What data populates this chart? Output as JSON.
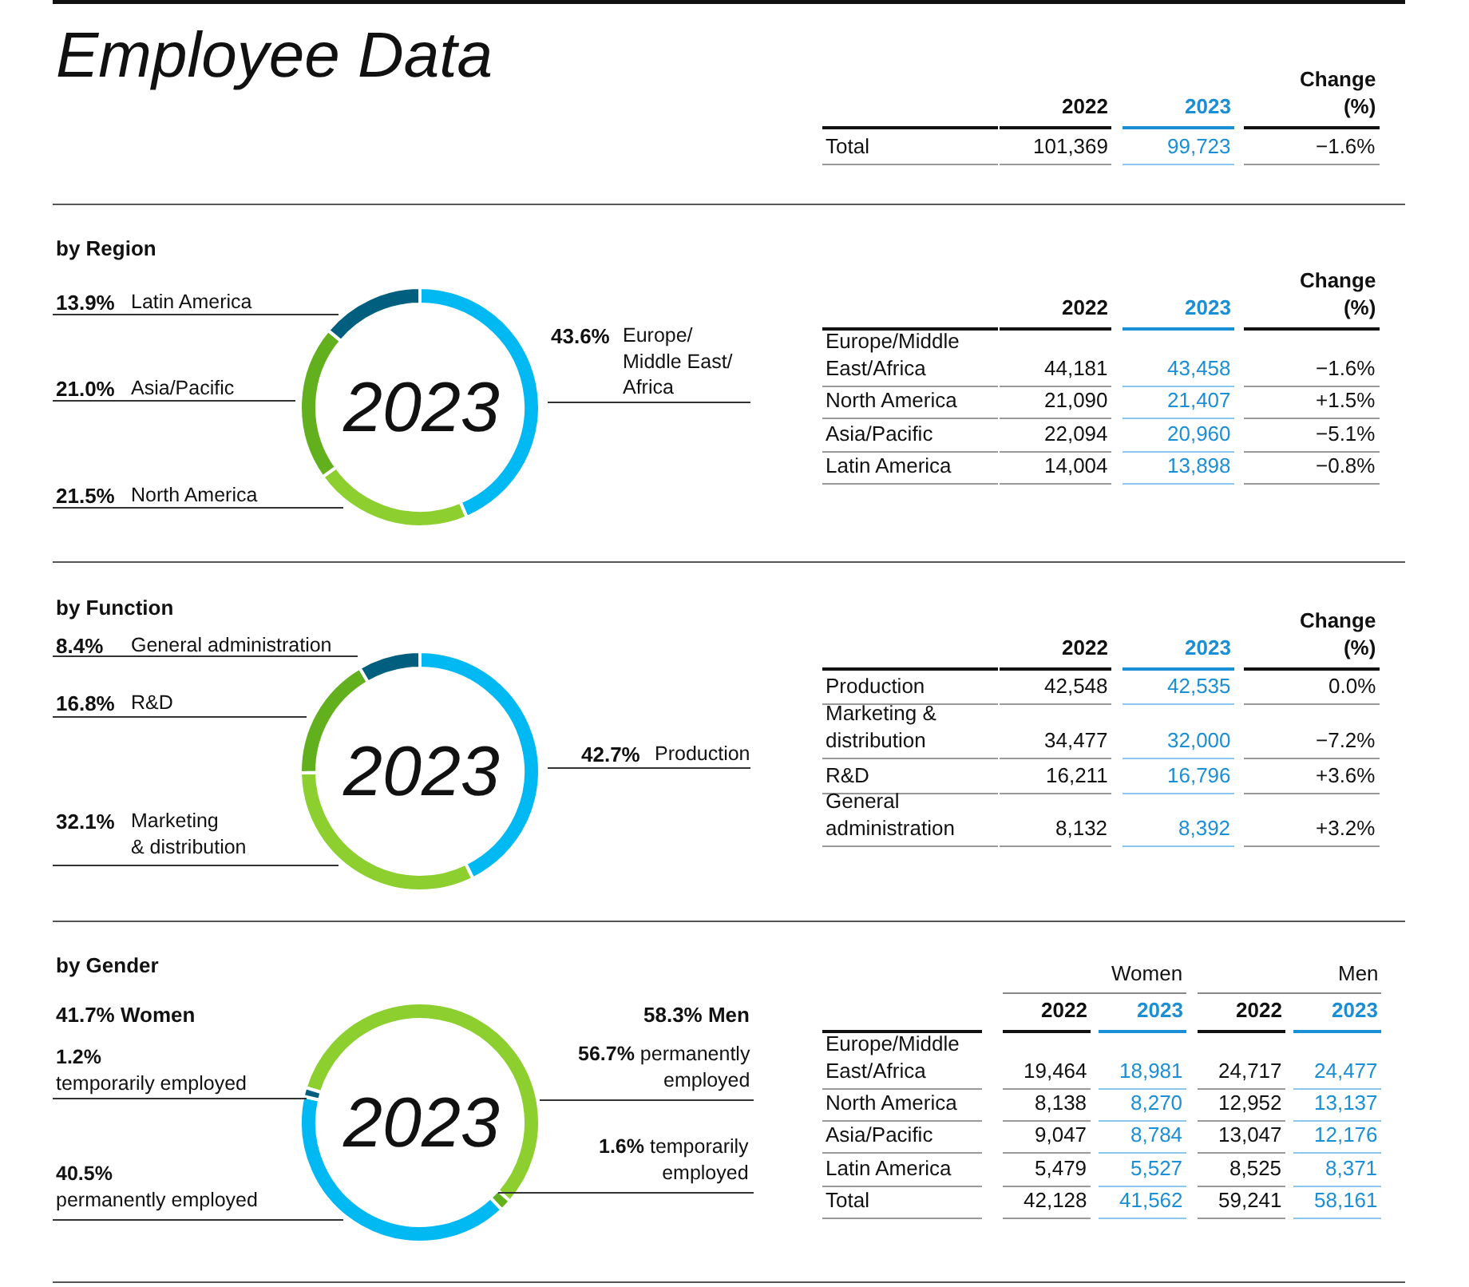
{
  "chart_data": [
    {
      "type": "other",
      "title": "Employee Data",
      "categories": [
        "2022",
        "2023",
        "Change\n(%)"
      ],
      "y_categories": [
        "Total"
      ],
      "cell_labels": [
        [
          "101,369",
          "99,723",
          "−1.6%"
        ]
      ]
    },
    {
      "type": "donut",
      "title": "by Region",
      "categories": [
        "Europe/\nMiddle East/\nAfrica",
        "North America",
        "Asia/Pacific",
        "Latin America"
      ],
      "values": [
        43.6,
        21.5,
        21.0,
        13.9
      ],
      "value_labels": [
        "43.6%",
        "21.5%",
        "21.0%",
        "13.9%"
      ],
      "colors": [
        "#00b9f2",
        "#8ccf2e",
        "#62b01e",
        "#005f7f"
      ],
      "annotations": [
        "2023"
      ]
    },
    {
      "type": "other",
      "categories": [
        "2022",
        "2023",
        "Change\n(%)"
      ],
      "y_categories": [
        "Europe/Middle\nEast/Africa",
        "North America",
        "Asia/Pacific",
        "Latin America"
      ],
      "cell_labels": [
        [
          "44,181",
          "43,458",
          "−1.6%"
        ],
        [
          "21,090",
          "21,407",
          "+1.5%"
        ],
        [
          "22,094",
          "20,960",
          "−5.1%"
        ],
        [
          "14,004",
          "13,898",
          "−0.8%"
        ]
      ]
    },
    {
      "type": "donut",
      "title": "by Function",
      "categories": [
        "Production",
        "Marketing\n& distribution",
        "R&D",
        "General administration"
      ],
      "values": [
        42.7,
        32.1,
        16.8,
        8.4
      ],
      "value_labels": [
        "42.7%",
        "32.1%",
        "16.8%",
        "8.4%"
      ],
      "colors": [
        "#00b9f2",
        "#8ccf2e",
        "#62b01e",
        "#005f7f"
      ],
      "annotations": [
        "2023"
      ]
    },
    {
      "type": "other",
      "categories": [
        "2022",
        "2023",
        "Change\n(%)"
      ],
      "y_categories": [
        "Production",
        "Marketing &\ndistribution",
        "R&D",
        "General\nadministration"
      ],
      "cell_labels": [
        [
          "42,548",
          "42,535",
          "0.0%"
        ],
        [
          "34,477",
          "32,000",
          "−7.2%"
        ],
        [
          "16,211",
          "16,796",
          "+3.6%"
        ],
        [
          "8,132",
          "8,392",
          "+3.2%"
        ]
      ]
    },
    {
      "type": "donut",
      "title": "by Gender",
      "categories": [
        "permanently employed",
        "temporarily employed",
        "permanently employed",
        "temporarily employed"
      ],
      "values": [
        56.7,
        1.6,
        40.5,
        1.2
      ],
      "value_labels": [
        "56.7%",
        "1.6%",
        "40.5%",
        "1.2%"
      ],
      "colors": [
        "#8ccf2e",
        "#62b01e",
        "#00b9f2",
        "#005f7f"
      ],
      "annotations": [
        "2023",
        "41.7% Women",
        "58.3% Men"
      ]
    },
    {
      "type": "other",
      "categories": [
        "2022",
        "2023",
        "2022",
        "2023"
      ],
      "y_categories": [
        "Europe/Middle\nEast/Africa",
        "North America",
        "Asia/Pacific",
        "Latin America",
        "Total"
      ],
      "cell_labels": [
        [
          "19,464",
          "18,981",
          "24,717",
          "24,477"
        ],
        [
          "8,138",
          "8,270",
          "12,952",
          "13,137"
        ],
        [
          "9,047",
          "8,784",
          "13,047",
          "12,176"
        ],
        [
          "5,479",
          "5,527",
          "8,525",
          "8,371"
        ],
        [
          "42,128",
          "41,562",
          "59,241",
          "58,161"
        ]
      ],
      "annotations": [
        "Women",
        "Men"
      ]
    }
  ]
}
